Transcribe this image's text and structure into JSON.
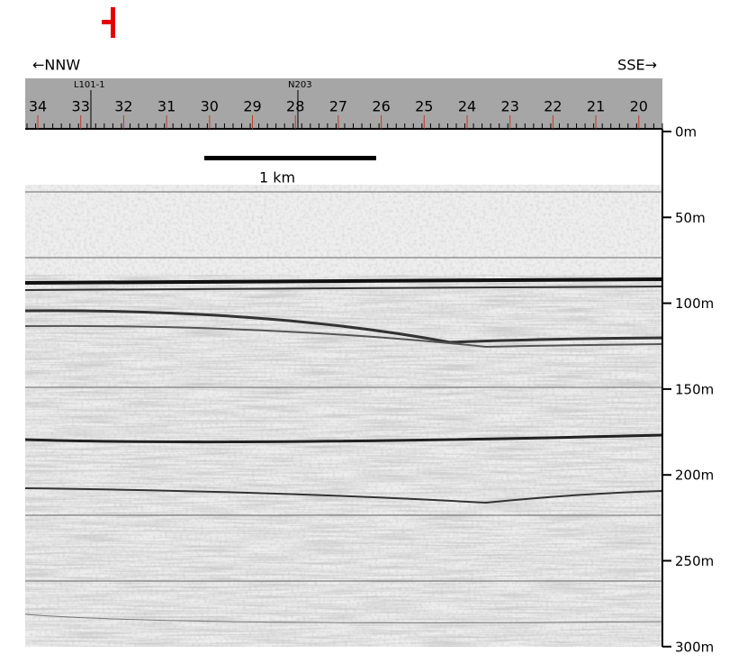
{
  "header": {
    "left_direction": "←NNW",
    "right_direction": "SSE→"
  },
  "ruler": {
    "line_labels": [
      "L101-1",
      "N203"
    ],
    "stations": [
      "34",
      "33",
      "32",
      "31",
      "30",
      "29",
      "28",
      "27",
      "26",
      "25",
      "24",
      "23",
      "22",
      "21",
      "20"
    ]
  },
  "scale_bar": {
    "label": "1 km"
  },
  "depth_axis": {
    "labels": [
      "0m",
      "50m",
      "100m",
      "150m",
      "200m",
      "250m",
      "300m"
    ]
  }
}
